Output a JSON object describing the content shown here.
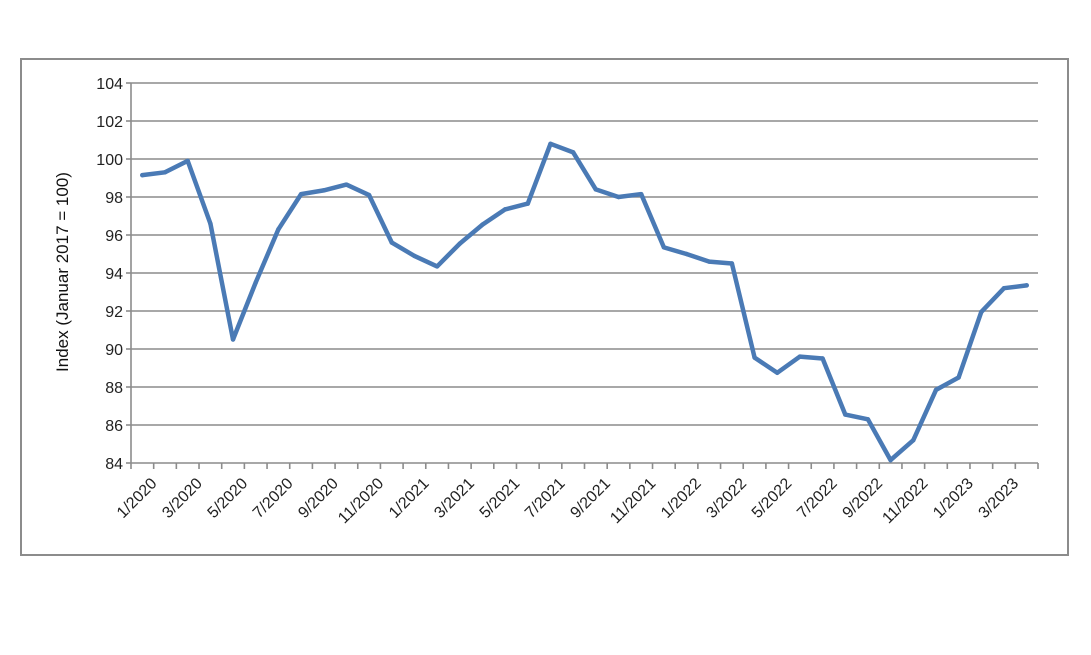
{
  "chart_data": {
    "type": "line",
    "title": "",
    "xlabel": "",
    "ylabel": "Index (Januar 2017 = 100)",
    "ylim": [
      84,
      104
    ],
    "yticks": [
      84,
      86,
      88,
      90,
      92,
      94,
      96,
      98,
      100,
      102,
      104
    ],
    "grid": true,
    "legend": "none",
    "x": [
      "1/2020",
      "2/2020",
      "3/2020",
      "4/2020",
      "5/2020",
      "6/2020",
      "7/2020",
      "8/2020",
      "9/2020",
      "10/2020",
      "11/2020",
      "12/2020",
      "1/2021",
      "2/2021",
      "3/2021",
      "4/2021",
      "5/2021",
      "6/2021",
      "7/2021",
      "8/2021",
      "9/2021",
      "10/2021",
      "11/2021",
      "12/2021",
      "1/2022",
      "2/2022",
      "3/2022",
      "4/2022",
      "5/2022",
      "6/2022",
      "7/2022",
      "8/2022",
      "9/2022",
      "10/2022",
      "11/2022",
      "12/2022",
      "1/2023",
      "2/2023",
      "3/2023",
      "4/2023"
    ],
    "xtick_labels": [
      "1/2020",
      "3/2020",
      "5/2020",
      "7/2020",
      "9/2020",
      "11/2020",
      "1/2021",
      "3/2021",
      "5/2021",
      "7/2021",
      "9/2021",
      "11/2021",
      "1/2022",
      "3/2022",
      "5/2022",
      "7/2022",
      "9/2022",
      "11/2022",
      "1/2023",
      "3/2023"
    ],
    "series": [
      {
        "values": [
          99.15,
          99.3,
          99.9,
          96.6,
          90.5,
          93.5,
          96.3,
          98.15,
          98.35,
          98.65,
          98.1,
          95.6,
          94.9,
          94.35,
          95.55,
          96.55,
          97.35,
          97.65,
          100.8,
          100.35,
          98.4,
          98.0,
          98.15,
          95.35,
          95.0,
          94.6,
          94.5,
          89.55,
          88.75,
          89.6,
          89.5,
          86.55,
          86.3,
          84.15,
          85.2,
          87.85,
          88.5,
          91.95,
          93.2,
          93.35
        ]
      }
    ],
    "colors": {
      "line": "#4a7ab5",
      "grid": "#8c8c8c",
      "axis": "#8c8c8c"
    }
  }
}
